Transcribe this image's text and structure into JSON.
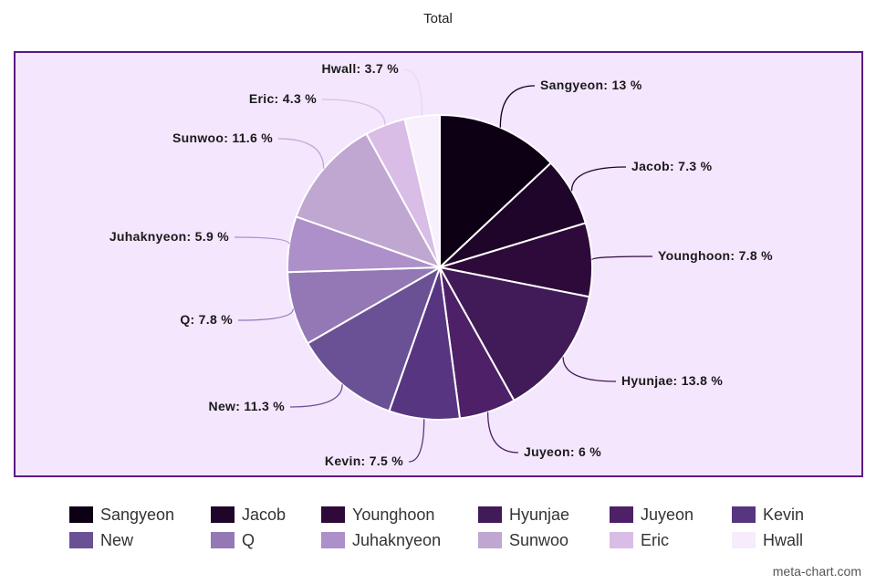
{
  "chart_data": {
    "type": "pie",
    "title": "Total",
    "categories": [
      "Sangyeon",
      "Jacob",
      "Younghoon",
      "Hyunjae",
      "Juyeon",
      "Kevin",
      "New",
      "Q",
      "Juhaknyeon",
      "Sunwoo",
      "Eric",
      "Hwall"
    ],
    "values": [
      13,
      7.3,
      7.8,
      13.8,
      6,
      7.5,
      11.3,
      7.8,
      5.9,
      11.6,
      4.3,
      3.7
    ],
    "value_labels": [
      "Sangyeon: 13 %",
      "Jacob: 7.3 %",
      "Younghoon: 7.8 %",
      "Hyunjae: 13.8 %",
      "Juyeon: 6 %",
      "Kevin: 7.5 %",
      "New: 11.3 %",
      "Q: 7.8 %",
      "Juhaknyeon: 5.9 %",
      "Sunwoo: 11.6 %",
      "Eric: 4.3 %",
      "Hwall: 3.7 %"
    ],
    "colors": [
      "#0d0015",
      "#1f0529",
      "#2e0a3a",
      "#411a58",
      "#4e2068",
      "#583581",
      "#6a5195",
      "#9478b5",
      "#ad8fc9",
      "#c0a7d1",
      "#d9bde6",
      "#f8f0fd"
    ],
    "legend_position": "bottom",
    "frame_border_color": "#5b1a86",
    "frame_background": "#f4e6fd"
  },
  "watermark": "meta-chart.com"
}
